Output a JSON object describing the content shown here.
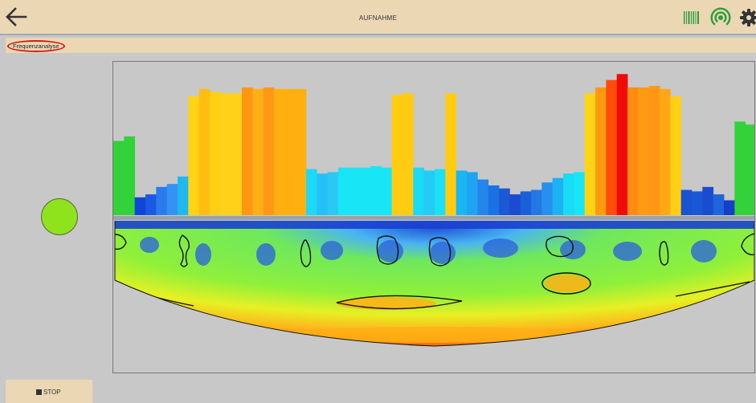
{
  "header": {
    "title": "AUFNAHME",
    "icons": [
      "arrow-left-icon",
      "barcode-icon",
      "signal-icon",
      "gear-icon"
    ],
    "background": "#ecd7b4"
  },
  "subheader": {
    "label": "Frequenzanalyse"
  },
  "indicator": {
    "color": "#8fe31d"
  },
  "footer": {
    "stop_label": "STOP"
  },
  "chart_data": {
    "type": "bar",
    "bar_values": [
      0.5,
      0.53,
      0.12,
      0.14,
      0.19,
      0.21,
      0.26,
      0.8,
      0.85,
      0.83,
      0.82,
      0.82,
      0.86,
      0.85,
      0.86,
      0.85,
      0.85,
      0.85,
      0.31,
      0.28,
      0.29,
      0.32,
      0.32,
      0.32,
      0.33,
      0.32,
      0.81,
      0.82,
      0.32,
      0.3,
      0.31,
      0.82,
      0.3,
      0.29,
      0.24,
      0.2,
      0.18,
      0.14,
      0.16,
      0.17,
      0.22,
      0.25,
      0.28,
      0.29,
      0.82,
      0.86,
      0.91,
      0.95,
      0.86,
      0.86,
      0.87,
      0.85,
      0.8,
      0.17,
      0.16,
      0.19,
      0.14,
      0.1,
      0.63,
      0.61
    ],
    "bar_colors": [
      "#33d13a",
      "#33d13a",
      "#1046d6",
      "#1a5ae2",
      "#2b7bef",
      "#3392f4",
      "#1fb9f0",
      "#ffd414",
      "#ffbd12",
      "#ffcf16",
      "#ffd118",
      "#ffd118",
      "#ff9810",
      "#ffb014",
      "#ff9814",
      "#ffaf10",
      "#ffaf10",
      "#ffaf10",
      "#1cd9f5",
      "#25c0f6",
      "#2bc7f5",
      "#18e6f6",
      "#18e6f6",
      "#18e6f6",
      "#18e6f6",
      "#18e6f6",
      "#ffcc12",
      "#ffcc12",
      "#1cd9f5",
      "#24cbf5",
      "#1ee0f5",
      "#ffcc12",
      "#19b6f3",
      "#1ea4f2",
      "#2486ea",
      "#1a73e3",
      "#1d58d6",
      "#1a4bd0",
      "#1a5ed8",
      "#2478e6",
      "#2690ee",
      "#1cb2f3",
      "#18dcf6",
      "#18e6f6",
      "#ffd414",
      "#ff9a10",
      "#ff4c0a",
      "#ef0c06",
      "#ff8c10",
      "#ff9a14",
      "#ff9614",
      "#ffa714",
      "#ffcf16",
      "#1a53d1",
      "#1a58d6",
      "#1a4cd0",
      "#1e64dc",
      "#1440c8",
      "#33d13a",
      "#33d13a"
    ]
  }
}
